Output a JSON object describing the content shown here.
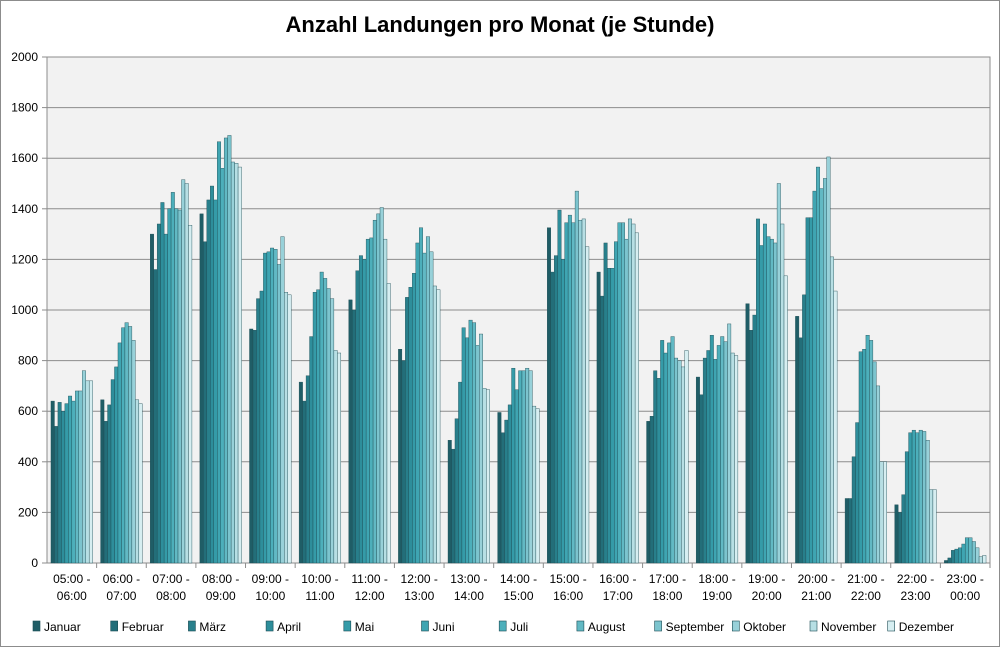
{
  "chart_data": {
    "type": "bar",
    "title": "Anzahl Landungen pro Monat (je Stunde)",
    "xlabel": "",
    "ylabel": "",
    "ylim": [
      0,
      2000
    ],
    "yticks": [
      0,
      200,
      400,
      600,
      800,
      1000,
      1200,
      1400,
      1600,
      1800,
      2000
    ],
    "grid": true,
    "legend": "bottom",
    "categories": [
      [
        "05:00 -",
        "06:00"
      ],
      [
        "06:00 -",
        "07:00"
      ],
      [
        "07:00 -",
        "08:00"
      ],
      [
        "08:00 -",
        "09:00"
      ],
      [
        "09:00 -",
        "10:00"
      ],
      [
        "10:00 -",
        "11:00"
      ],
      [
        "11:00 -",
        "12:00"
      ],
      [
        "12:00 -",
        "13:00"
      ],
      [
        "13:00 -",
        "14:00"
      ],
      [
        "14:00 -",
        "15:00"
      ],
      [
        "15:00 -",
        "16:00"
      ],
      [
        "16:00 -",
        "17:00"
      ],
      [
        "17:00 -",
        "18:00"
      ],
      [
        "18:00 -",
        "19:00"
      ],
      [
        "19:00 -",
        "20:00"
      ],
      [
        "20:00 -",
        "21:00"
      ],
      [
        "21:00 -",
        "22:00"
      ],
      [
        "22:00 -",
        "23:00"
      ],
      [
        "23:00 -",
        "00:00"
      ]
    ],
    "series": [
      {
        "name": "Januar",
        "color": "#1f5d66",
        "values": [
          640,
          645,
          1300,
          1380,
          925,
          715,
          1040,
          845,
          485,
          595,
          1325,
          1150,
          560,
          735,
          1025,
          975,
          255,
          230,
          10
        ]
      },
      {
        "name": "Februar",
        "color": "#236e79",
        "values": [
          540,
          560,
          1160,
          1270,
          920,
          640,
          1000,
          800,
          450,
          515,
          1150,
          1055,
          580,
          665,
          920,
          890,
          255,
          200,
          20
        ]
      },
      {
        "name": "März",
        "color": "#287f8b",
        "values": [
          635,
          625,
          1340,
          1435,
          1045,
          740,
          1155,
          1050,
          570,
          565,
          1215,
          1265,
          760,
          810,
          980,
          1060,
          420,
          270,
          50
        ]
      },
      {
        "name": "April",
        "color": "#2e8e9b",
        "values": [
          600,
          725,
          1425,
          1490,
          1075,
          895,
          1215,
          1090,
          715,
          625,
          1395,
          1165,
          730,
          840,
          1360,
          1365,
          555,
          440,
          55
        ]
      },
      {
        "name": "Mai",
        "color": "#359ba8",
        "values": [
          630,
          775,
          1300,
          1435,
          1225,
          1070,
          1200,
          1145,
          930,
          770,
          1200,
          1165,
          880,
          900,
          1255,
          1365,
          835,
          515,
          60
        ]
      },
      {
        "name": "Juni",
        "color": "#3fa5b2",
        "values": [
          660,
          870,
          1400,
          1665,
          1230,
          1080,
          1280,
          1265,
          890,
          685,
          1345,
          1270,
          830,
          805,
          1340,
          1470,
          845,
          525,
          75
        ]
      },
      {
        "name": "Juli",
        "color": "#4dafbb",
        "values": [
          640,
          930,
          1465,
          1560,
          1245,
          1150,
          1285,
          1325,
          960,
          760,
          1375,
          1345,
          870,
          860,
          1290,
          1565,
          900,
          515,
          100
        ]
      },
      {
        "name": "August",
        "color": "#62b9c4",
        "values": [
          680,
          950,
          1400,
          1680,
          1240,
          1125,
          1355,
          1225,
          950,
          760,
          1345,
          1345,
          895,
          895,
          1280,
          1480,
          880,
          525,
          100
        ]
      },
      {
        "name": "September",
        "color": "#7cc4ce",
        "values": [
          680,
          935,
          1395,
          1690,
          1180,
          1085,
          1380,
          1290,
          860,
          770,
          1470,
          1280,
          810,
          875,
          1265,
          1520,
          795,
          520,
          85
        ]
      },
      {
        "name": "Oktober",
        "color": "#98d1d9",
        "values": [
          760,
          880,
          1515,
          1585,
          1290,
          1045,
          1405,
          1230,
          905,
          760,
          1355,
          1360,
          800,
          945,
          1500,
          1605,
          700,
          485,
          60
        ]
      },
      {
        "name": "November",
        "color": "#b7dfe4",
        "values": [
          720,
          645,
          1500,
          1580,
          1070,
          840,
          1280,
          1095,
          690,
          620,
          1360,
          1340,
          775,
          830,
          1340,
          1210,
          400,
          290,
          25
        ]
      },
      {
        "name": "Dezember",
        "color": "#d6eef1",
        "values": [
          720,
          630,
          1335,
          1565,
          1060,
          830,
          1105,
          1080,
          685,
          610,
          1250,
          1305,
          840,
          820,
          1135,
          1075,
          400,
          290,
          30
        ]
      }
    ]
  }
}
